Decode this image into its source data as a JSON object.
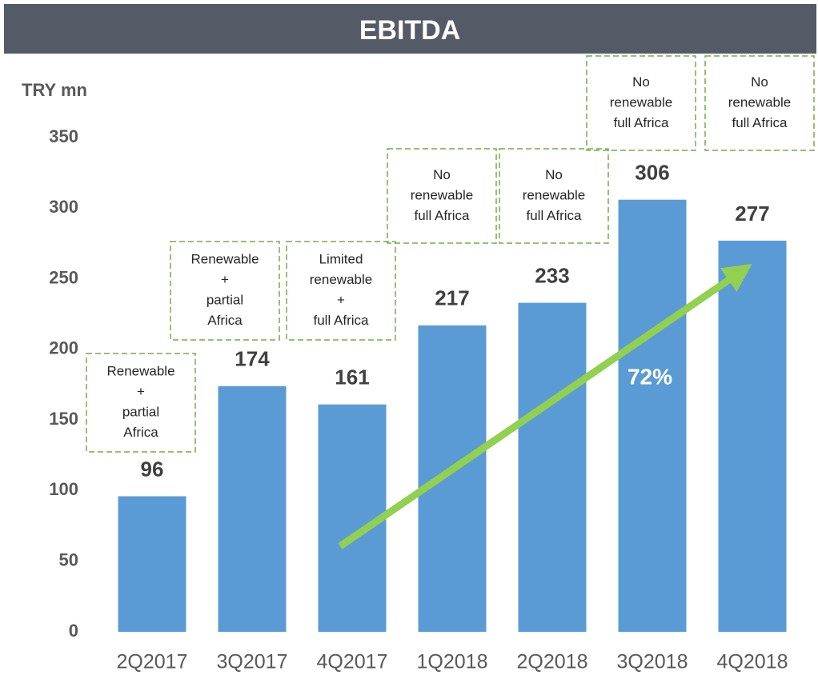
{
  "chart_data": {
    "type": "bar",
    "title": "EBITDA",
    "y_label": "TRY mn",
    "categories": [
      "2Q2017",
      "3Q2017",
      "4Q2017",
      "1Q2018",
      "2Q2018",
      "3Q2018",
      "4Q2018"
    ],
    "values": [
      96,
      174,
      161,
      217,
      233,
      306,
      277
    ],
    "color": "#5b9bd5",
    "ylim": [
      0,
      350
    ],
    "yticks": [
      0,
      50,
      100,
      150,
      200,
      250,
      300,
      350
    ],
    "grid": false,
    "annotations": [
      [
        "Renewable",
        "+",
        "partial",
        "Africa"
      ],
      [
        "Renewable",
        "+",
        "partial",
        "Africa"
      ],
      [
        "Limited",
        "renewable",
        "+",
        "full Africa"
      ],
      [
        "No",
        "renewable",
        "full Africa"
      ],
      [
        "No",
        "renewable",
        "full Africa"
      ],
      [
        "No",
        "renewable",
        "full Africa"
      ],
      [
        "No",
        "renewable",
        "full Africa"
      ]
    ],
    "growth_label": "72%"
  }
}
